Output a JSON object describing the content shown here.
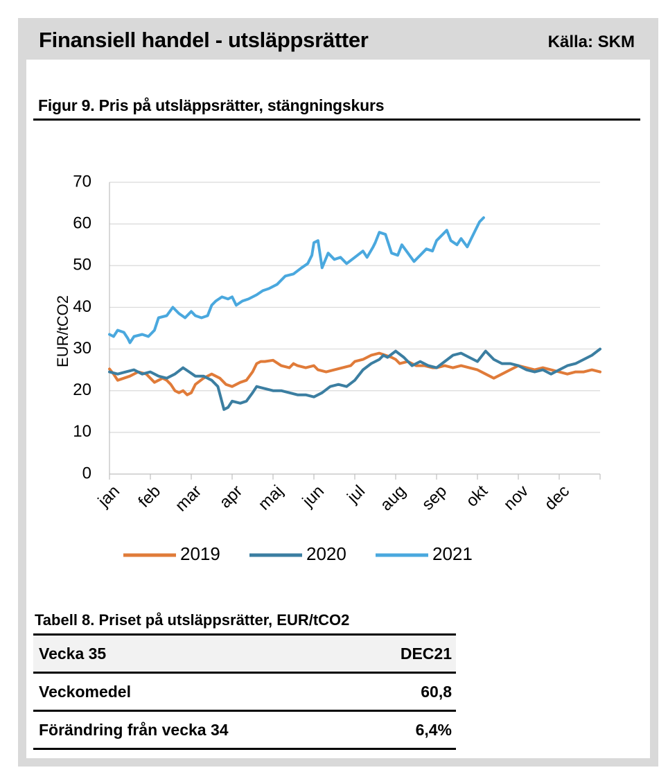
{
  "header": {
    "title": "Finansiell handel - utsläppsrätter",
    "source": "Källa: SKM"
  },
  "figure": {
    "caption": "Figur 9. Pris på utsläppsrätter, stängningskurs"
  },
  "colors": {
    "s2019": "#e07b39",
    "s2020": "#3b7ea1",
    "s2021": "#4aa8de",
    "grid": "#d9d9d9",
    "axis": "#bfbfbf"
  },
  "chart_data": {
    "type": "line",
    "title": "Figur 9. Pris på utsläppsrätter, stängningskurs",
    "ylabel": "EUR/tCO2",
    "xlabel": "",
    "ylim": [
      0,
      70
    ],
    "yticks": [
      0,
      10,
      20,
      30,
      40,
      50,
      60,
      70
    ],
    "xlim": [
      1,
      13
    ],
    "categories": [
      "jan",
      "feb",
      "mar",
      "apr",
      "maj",
      "jun",
      "jul",
      "aug",
      "sep",
      "okt",
      "nov",
      "dec"
    ],
    "grid": true,
    "legend": "bottom",
    "series": [
      {
        "name": "2019",
        "x": [
          1.0,
          1.1,
          1.2,
          1.35,
          1.5,
          1.7,
          1.9,
          2.0,
          2.1,
          2.3,
          2.4,
          2.5,
          2.6,
          2.7,
          2.8,
          2.9,
          3.0,
          3.1,
          3.3,
          3.5,
          3.7,
          3.85,
          4.0,
          4.2,
          4.35,
          4.5,
          4.6,
          4.7,
          4.8,
          5.0,
          5.2,
          5.4,
          5.5,
          5.6,
          5.8,
          6.0,
          6.1,
          6.3,
          6.5,
          6.7,
          6.9,
          7.0,
          7.2,
          7.4,
          7.6,
          7.75,
          7.9,
          8.0,
          8.1,
          8.3,
          8.5,
          8.7,
          8.9,
          9.0,
          9.2,
          9.4,
          9.6,
          9.8,
          10.0,
          10.2,
          10.4,
          10.6,
          10.8,
          11.0,
          11.2,
          11.4,
          11.6,
          11.8,
          12.0,
          12.2,
          12.4,
          12.6,
          12.8,
          13.0
        ],
        "values": [
          25.2,
          24.0,
          22.5,
          23.0,
          23.5,
          24.5,
          24.0,
          23.0,
          22.0,
          23.0,
          22.5,
          21.5,
          20.0,
          19.5,
          20.0,
          19.0,
          19.5,
          21.5,
          23.0,
          24.0,
          23.0,
          21.5,
          21.0,
          22.0,
          22.5,
          24.5,
          26.5,
          27.0,
          27.0,
          27.3,
          26.0,
          25.5,
          26.5,
          26.0,
          25.5,
          26.0,
          25.0,
          24.5,
          25.0,
          25.5,
          26.0,
          27.0,
          27.5,
          28.5,
          29.0,
          28.5,
          28.0,
          27.5,
          26.5,
          27.0,
          26.0,
          26.0,
          25.5,
          25.5,
          26.0,
          25.5,
          26.0,
          25.5,
          25.0,
          24.0,
          23.0,
          24.0,
          25.0,
          26.0,
          25.5,
          25.0,
          25.5,
          25.0,
          24.5,
          24.0,
          24.5,
          24.5,
          25.0,
          24.5
        ]
      },
      {
        "name": "2020",
        "x": [
          1.0,
          1.2,
          1.4,
          1.6,
          1.8,
          2.0,
          2.2,
          2.4,
          2.6,
          2.8,
          2.95,
          3.1,
          3.3,
          3.5,
          3.65,
          3.8,
          3.9,
          4.0,
          4.2,
          4.35,
          4.5,
          4.6,
          4.8,
          5.0,
          5.2,
          5.4,
          5.6,
          5.8,
          6.0,
          6.2,
          6.4,
          6.6,
          6.8,
          7.0,
          7.2,
          7.4,
          7.6,
          7.7,
          7.8,
          8.0,
          8.2,
          8.4,
          8.6,
          8.8,
          9.0,
          9.2,
          9.4,
          9.6,
          9.8,
          10.0,
          10.2,
          10.4,
          10.6,
          10.8,
          11.0,
          11.2,
          11.4,
          11.6,
          11.8,
          12.0,
          12.2,
          12.4,
          12.6,
          12.8,
          13.0
        ],
        "values": [
          24.5,
          24.0,
          24.5,
          25.0,
          24.0,
          24.5,
          23.5,
          23.0,
          24.0,
          25.5,
          24.5,
          23.5,
          23.5,
          22.5,
          21.0,
          15.5,
          16.0,
          17.5,
          17.0,
          17.5,
          19.5,
          21.0,
          20.5,
          20.0,
          20.0,
          19.5,
          19.0,
          19.0,
          18.5,
          19.5,
          21.0,
          21.5,
          21.0,
          22.5,
          25.0,
          26.5,
          27.5,
          28.5,
          28.0,
          29.5,
          28.0,
          26.0,
          27.0,
          26.0,
          25.5,
          27.0,
          28.5,
          29.0,
          28.0,
          27.0,
          29.5,
          27.5,
          26.5,
          26.5,
          26.0,
          25.0,
          24.5,
          25.0,
          24.0,
          25.0,
          26.0,
          26.5,
          27.5,
          28.5,
          30.0
        ]
      },
      {
        "name": "2021",
        "x": [
          1.0,
          1.1,
          1.2,
          1.35,
          1.45,
          1.5,
          1.6,
          1.8,
          1.95,
          2.1,
          2.2,
          2.4,
          2.55,
          2.7,
          2.85,
          3.0,
          3.1,
          3.25,
          3.4,
          3.5,
          3.6,
          3.75,
          3.9,
          4.0,
          4.1,
          4.25,
          4.4,
          4.6,
          4.75,
          4.9,
          5.1,
          5.3,
          5.5,
          5.7,
          5.85,
          5.95,
          6.0,
          6.1,
          6.2,
          6.35,
          6.5,
          6.65,
          6.8,
          7.0,
          7.2,
          7.3,
          7.45,
          7.5,
          7.6,
          7.75,
          7.9,
          8.05,
          8.15,
          8.3,
          8.45,
          8.6,
          8.75,
          8.9,
          9.0,
          9.1,
          9.25,
          9.35,
          9.5,
          9.6,
          9.75,
          9.85,
          9.95,
          10.05,
          10.15
        ],
        "values": [
          33.5,
          33.0,
          34.5,
          34.0,
          32.5,
          31.5,
          33.0,
          33.5,
          33.0,
          34.5,
          37.5,
          38.0,
          40.0,
          38.5,
          37.5,
          39.0,
          38.0,
          37.5,
          38.0,
          40.5,
          41.5,
          42.5,
          42.0,
          42.5,
          40.5,
          41.5,
          42.0,
          43.0,
          44.0,
          44.5,
          45.5,
          47.5,
          48.0,
          49.5,
          50.5,
          52.5,
          55.5,
          56.0,
          49.5,
          53.0,
          51.5,
          52.0,
          50.5,
          52.0,
          53.5,
          52.0,
          54.5,
          55.5,
          58.0,
          57.5,
          53.0,
          52.5,
          55.0,
          53.0,
          51.0,
          52.5,
          54.0,
          53.5,
          56.0,
          57.0,
          58.5,
          56.0,
          55.0,
          56.5,
          54.5,
          56.5,
          58.5,
          60.5,
          61.5
        ]
      }
    ]
  },
  "table": {
    "caption": "Tabell 8. Priset på utsläppsrätter, EUR/tCO2",
    "header": {
      "label": "Vecka 35",
      "value": "DEC21"
    },
    "rows": [
      {
        "label": "Veckomedel",
        "value": "60,8"
      },
      {
        "label": "Förändring från vecka 34",
        "value": "6,4%"
      }
    ]
  }
}
